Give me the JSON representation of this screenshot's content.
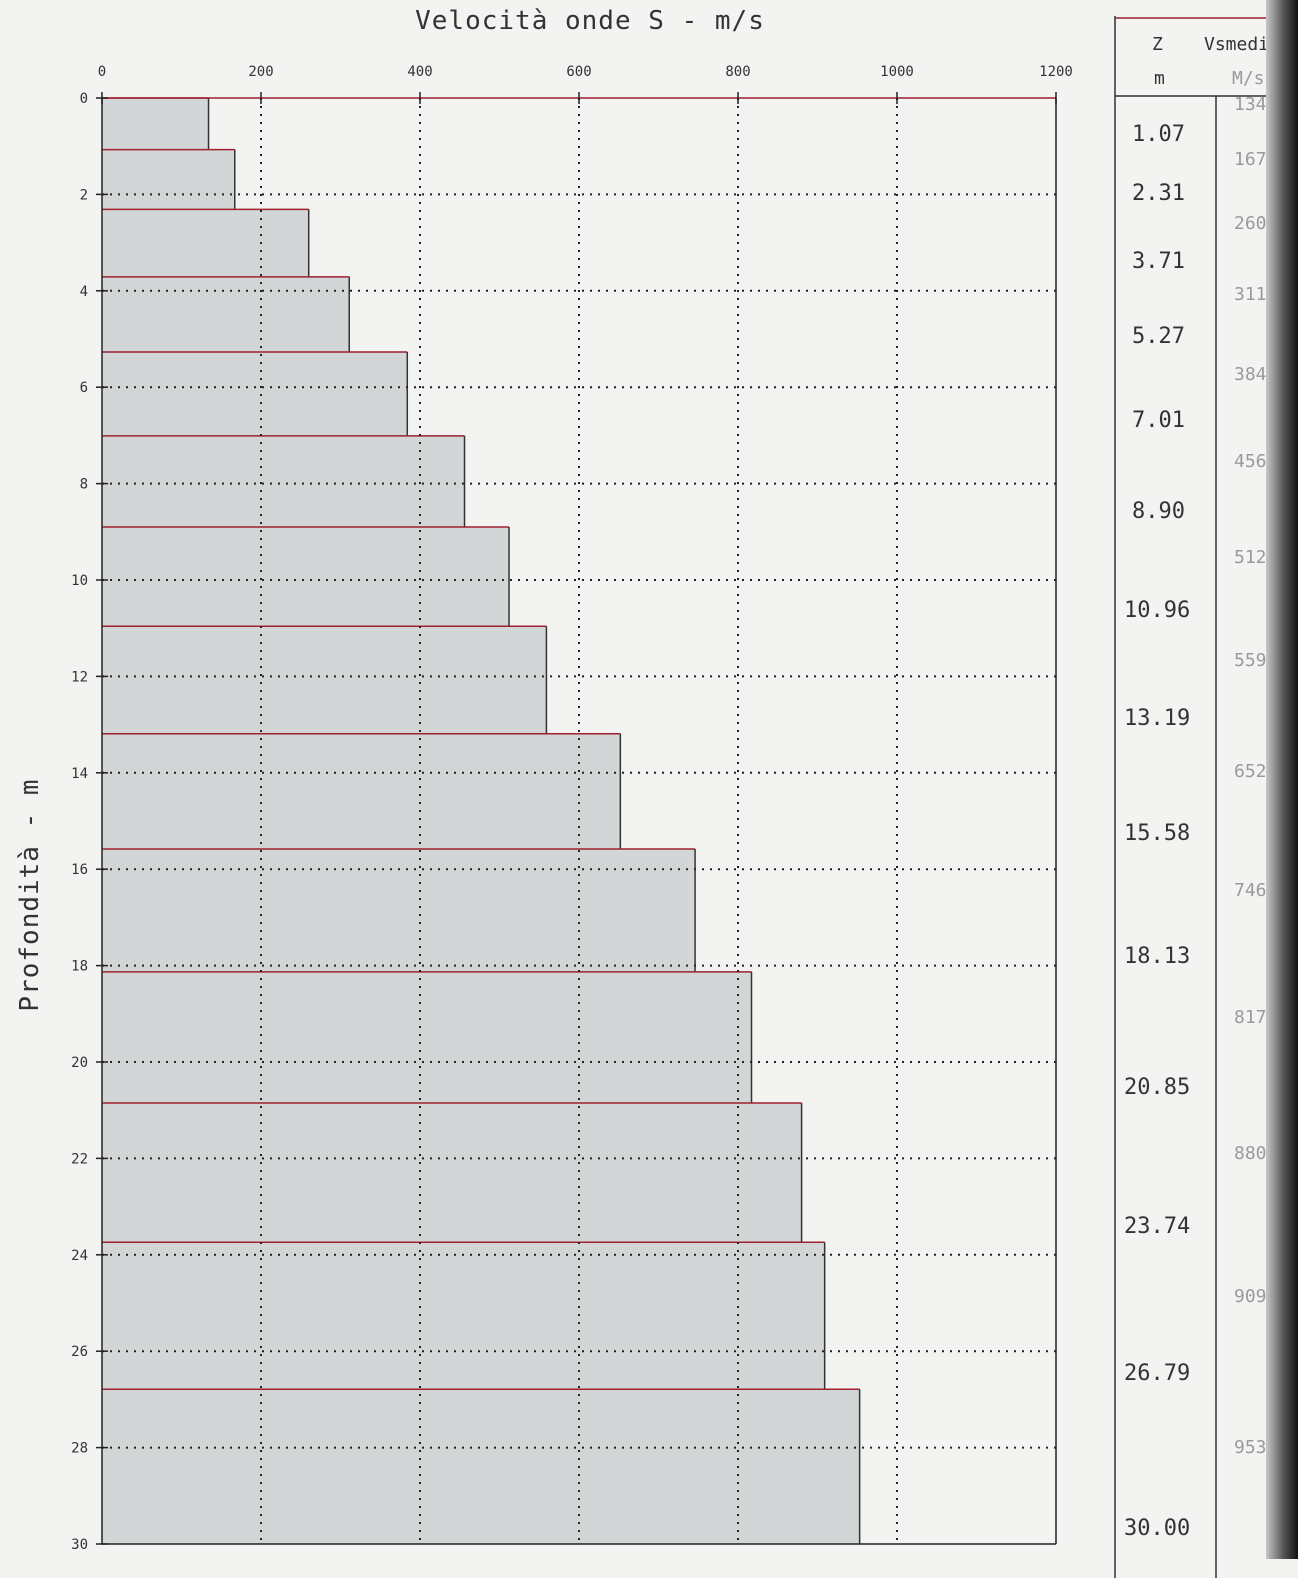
{
  "chart_data": {
    "type": "bar",
    "orientation": "horizontal-step-profile",
    "title": "Velocità onde S - m/s",
    "xlabel": "",
    "ylabel": "Profondità - m",
    "xlim": [
      0,
      1200
    ],
    "ylim": [
      0,
      30
    ],
    "x_ticks": [
      "0",
      "200",
      "400",
      "600",
      "800",
      "1000",
      "1200"
    ],
    "y_ticks": [
      "0",
      "2",
      "4",
      "6",
      "8",
      "10",
      "12",
      "14",
      "16",
      "18",
      "20",
      "22",
      "24",
      "26",
      "28",
      "30"
    ],
    "grid": true,
    "layers": [
      {
        "top": 0,
        "bottom": 1.07,
        "vs": 134
      },
      {
        "top": 1.07,
        "bottom": 2.31,
        "vs": 167
      },
      {
        "top": 2.31,
        "bottom": 3.71,
        "vs": 260
      },
      {
        "top": 3.71,
        "bottom": 5.27,
        "vs": 311
      },
      {
        "top": 5.27,
        "bottom": 7.01,
        "vs": 384
      },
      {
        "top": 7.01,
        "bottom": 8.9,
        "vs": 456
      },
      {
        "top": 8.9,
        "bottom": 10.96,
        "vs": 512
      },
      {
        "top": 10.96,
        "bottom": 13.19,
        "vs": 559
      },
      {
        "top": 13.19,
        "bottom": 15.58,
        "vs": 652
      },
      {
        "top": 15.58,
        "bottom": 18.13,
        "vs": 746
      },
      {
        "top": 18.13,
        "bottom": 20.85,
        "vs": 817
      },
      {
        "top": 20.85,
        "bottom": 23.74,
        "vs": 880
      },
      {
        "top": 23.74,
        "bottom": 26.79,
        "vs": 909
      },
      {
        "top": 26.79,
        "bottom": 30.0,
        "vs": 953
      }
    ]
  },
  "table": {
    "header_z": "Z",
    "header_v": "Vsmedia",
    "unit_z": "m",
    "unit_v": "M/s",
    "z_labels": [
      "1.07",
      "2.31",
      "3.71",
      "5.27",
      "7.01",
      "8.90",
      "10.96",
      "13.19",
      "15.58",
      "18.13",
      "20.85",
      "23.74",
      "26.79",
      "30.00"
    ],
    "v_labels": [
      "134",
      "167",
      "260",
      "311",
      "384",
      "456",
      "512",
      "559",
      "652",
      "746",
      "817",
      "880",
      "909",
      "953"
    ]
  },
  "colors": {
    "bar_fill": "#d2d6d6",
    "bar_edge": "#a02030",
    "grid": "#222222",
    "axis": "#222222"
  }
}
